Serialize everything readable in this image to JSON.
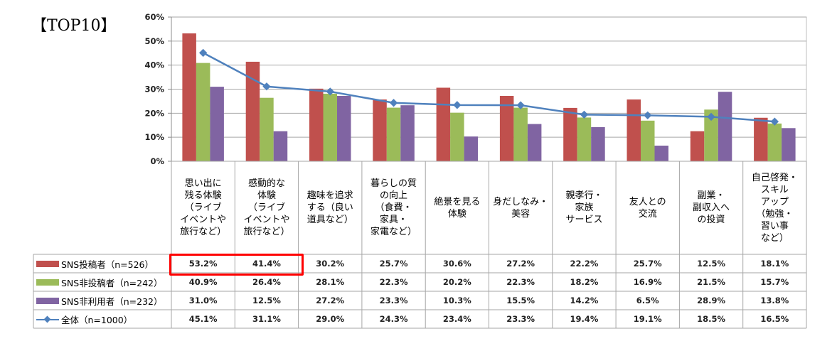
{
  "page_title": "【TOP10】",
  "chart_data": {
    "type": "bar",
    "title": "【TOP10】",
    "xlabel": "",
    "ylabel": "",
    "ylim": [
      0,
      0.6
    ],
    "yticks": [
      "0%",
      "10%",
      "20%",
      "30%",
      "40%",
      "50%",
      "60%"
    ],
    "ytick_values": [
      0,
      0.1,
      0.2,
      0.3,
      0.4,
      0.5,
      0.6
    ],
    "grid": true,
    "legend_placement": "data-table-left",
    "categories": [
      "思い出に\n残る体験\n（ライブ\nイベントや\n旅行など）",
      "感動的な\n体験\n（ライブ\nイベントや\n旅行など）",
      "趣味を追求\nする（良い\n道具など）",
      "暮らしの質\nの向上\n（食費・\n家具・\n家電など）",
      "絶景を見る\n体験",
      "身だしなみ・\n美容",
      "親孝行・\n家族\nサービス",
      "友人との\n交流",
      "副業・\n副収入へ\nの投資",
      "自己啓発・\nスキル\nアップ\n（勉強・\n習い事\nなど）"
    ],
    "series": [
      {
        "name": "SNS投稿者（n=526）",
        "type": "bar",
        "color": "#c0504d",
        "values": [
          53.2,
          41.4,
          30.2,
          25.7,
          30.6,
          27.2,
          22.2,
          25.7,
          12.5,
          18.1
        ],
        "labels": [
          "53.2%",
          "41.4%",
          "30.2%",
          "25.7%",
          "30.6%",
          "27.2%",
          "22.2%",
          "25.7%",
          "12.5%",
          "18.1%"
        ]
      },
      {
        "name": "SNS非投稿者（n=242）",
        "type": "bar",
        "color": "#9bbb59",
        "values": [
          40.9,
          26.4,
          28.1,
          22.3,
          20.2,
          22.3,
          18.2,
          16.9,
          21.5,
          15.7
        ],
        "labels": [
          "40.9%",
          "26.4%",
          "28.1%",
          "22.3%",
          "20.2%",
          "22.3%",
          "18.2%",
          "16.9%",
          "21.5%",
          "15.7%"
        ]
      },
      {
        "name": "SNS非利用者（n=232）",
        "type": "bar",
        "color": "#8064a2",
        "values": [
          31.0,
          12.5,
          27.2,
          23.3,
          10.3,
          15.5,
          14.2,
          6.5,
          28.9,
          13.8
        ],
        "labels": [
          "31.0%",
          "12.5%",
          "27.2%",
          "23.3%",
          "10.3%",
          "15.5%",
          "14.2%",
          "6.5%",
          "28.9%",
          "13.8%"
        ]
      },
      {
        "name": "全体（n=1000）",
        "type": "line",
        "color": "#4f81bd",
        "values": [
          45.1,
          31.1,
          29.0,
          24.3,
          23.4,
          23.3,
          19.4,
          19.1,
          18.5,
          16.5
        ],
        "labels": [
          "45.1%",
          "31.1%",
          "29.0%",
          "24.3%",
          "23.4%",
          "23.3%",
          "19.4%",
          "19.1%",
          "18.5%",
          "16.5%"
        ]
      }
    ],
    "highlight": {
      "series": "SNS投稿者（n=526）",
      "categories": [
        0,
        1
      ],
      "color": "#ff0000"
    }
  }
}
